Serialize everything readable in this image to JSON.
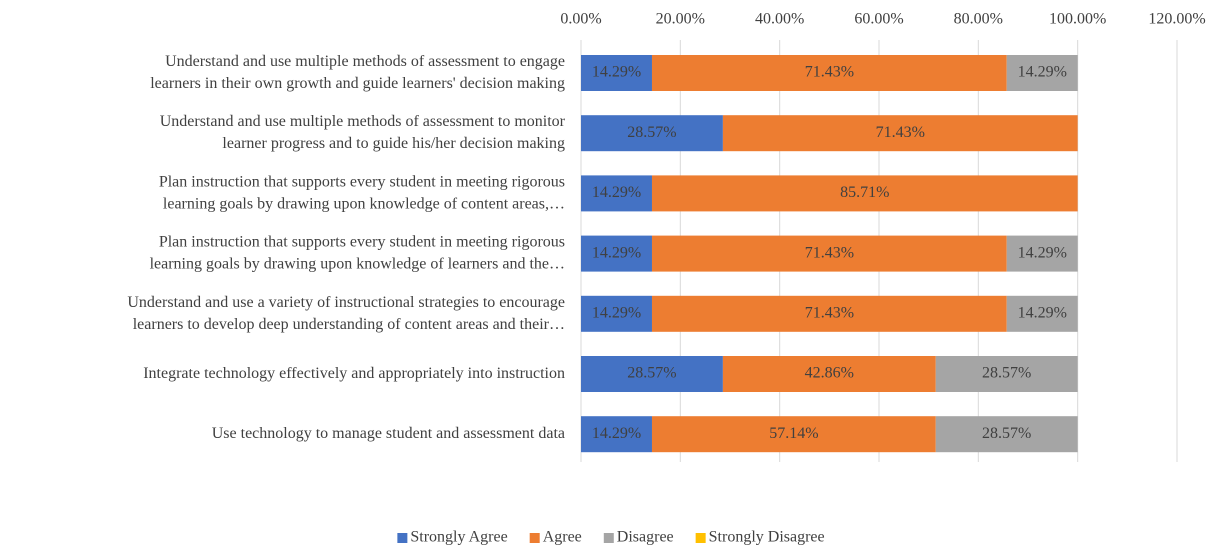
{
  "chart_data": {
    "type": "stacked-bar-horizontal",
    "categories": [
      "Understand and use multiple methods of assessment to engage\nlearners in their own growth and guide learners' decision making",
      "Understand and use multiple methods of assessment to monitor\nlearner progress and to guide his/her decision making",
      "Plan instruction that supports every student in meeting rigorous\nlearning goals by drawing upon knowledge of content areas,…",
      "Plan instruction that supports every student in meeting rigorous\nlearning goals by drawing upon knowledge of learners and the…",
      "Understand and use a variety of instructional strategies to encourage\nlearners to develop deep understanding of content areas and their…",
      "Integrate technology effectively and appropriately into instruction",
      "Use technology to manage student and assessment data"
    ],
    "series": [
      {
        "name": "Strongly Agree",
        "color": "#4472c4",
        "values": [
          14.29,
          28.57,
          14.29,
          14.29,
          14.29,
          28.57,
          14.29
        ],
        "value_labels": [
          "14.29%",
          "28.57%",
          "14.29%",
          "14.29%",
          "14.29%",
          "28.57%",
          "14.29%"
        ]
      },
      {
        "name": "Agree",
        "color": "#ed7d31",
        "values": [
          71.43,
          71.43,
          85.71,
          71.43,
          71.43,
          42.86,
          57.14
        ],
        "value_labels": [
          "71.43%",
          "71.43%",
          "85.71%",
          "71.43%",
          "71.43%",
          "42.86%",
          "57.14%"
        ]
      },
      {
        "name": "Disagree",
        "color": "#a5a5a5",
        "values": [
          14.29,
          0,
          0,
          14.29,
          14.29,
          28.57,
          28.57
        ],
        "value_labels": [
          "14.29%",
          null,
          null,
          "14.29%",
          "14.29%",
          "28.57%",
          "28.57%"
        ]
      },
      {
        "name": "Strongly Disagree",
        "color": "#ffc000",
        "values": [
          0,
          0,
          0,
          0,
          0,
          0,
          0
        ],
        "value_labels": [
          null,
          null,
          null,
          null,
          null,
          null,
          null
        ]
      }
    ],
    "xlim": [
      0,
      120
    ],
    "xticks": [
      {
        "value": 0,
        "label": "0.00%"
      },
      {
        "value": 20,
        "label": "20.00%"
      },
      {
        "value": 40,
        "label": "40.00%"
      },
      {
        "value": 60,
        "label": "60.00%"
      },
      {
        "value": 80,
        "label": "80.00%"
      },
      {
        "value": 100,
        "label": "100.00%"
      },
      {
        "value": 120,
        "label": "120.00%"
      }
    ],
    "grid": true,
    "legend": "bottom"
  }
}
